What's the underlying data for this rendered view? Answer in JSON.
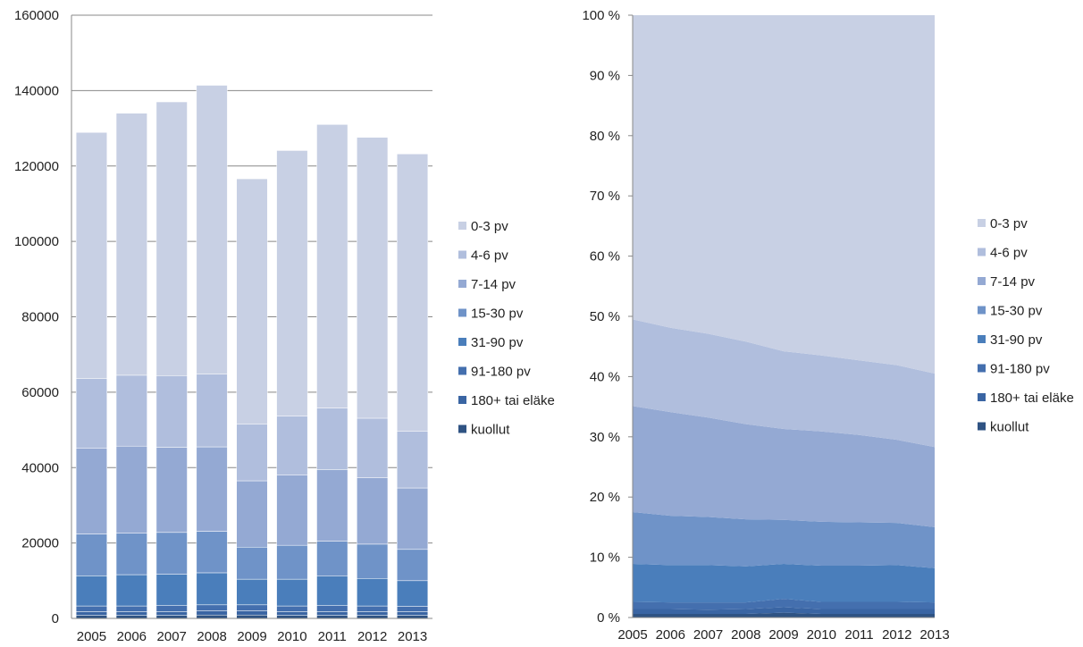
{
  "colors": {
    "kuollut": "#2f5383",
    "180+ tai eläke": "#3a65a3",
    "91-180 pv": "#446fae",
    "31-90 pv": "#4a7ebb",
    "15-30 pv": "#6f93c8",
    "7-14 pv": "#94a9d3",
    "4-6 pv": "#b0bedd",
    "0-3 pv": "#c8d0e4",
    "grid": "#888888",
    "axis": "#888888"
  },
  "chart_data": [
    {
      "type": "bar",
      "stacked": true,
      "categories": [
        "2005",
        "2006",
        "2007",
        "2008",
        "2009",
        "2010",
        "2011",
        "2012",
        "2013"
      ],
      "ylim": [
        0,
        160000
      ],
      "yticks": [
        0,
        20000,
        40000,
        60000,
        80000,
        100000,
        120000,
        140000,
        160000
      ],
      "ytick_labels": [
        "0",
        "20000",
        "40000",
        "60000",
        "80000",
        "100000",
        "120000",
        "140000",
        "160000"
      ],
      "grid": true,
      "legend_position": "right",
      "series": [
        {
          "name": "kuollut",
          "values": [
            800,
            800,
            800,
            900,
            900,
            800,
            800,
            800,
            800
          ]
        },
        {
          "name": "180+ tai eläke",
          "values": [
            1000,
            1000,
            1000,
            1100,
            1100,
            1000,
            1000,
            1000,
            1000
          ]
        },
        {
          "name": "91-180 pv",
          "values": [
            1500,
            1500,
            1600,
            1600,
            1600,
            1500,
            1600,
            1500,
            1400
          ]
        },
        {
          "name": "31-90 pv",
          "values": [
            8000,
            8300,
            8300,
            8500,
            6800,
            7100,
            7800,
            7300,
            6800
          ]
        },
        {
          "name": "15-30 pv",
          "values": [
            11100,
            11000,
            11100,
            11000,
            8500,
            9000,
            9300,
            9100,
            8300
          ]
        },
        {
          "name": "7-14 pv",
          "values": [
            22700,
            23100,
            22600,
            22400,
            17600,
            18600,
            19000,
            17600,
            16300
          ]
        },
        {
          "name": "4-6 pv",
          "values": [
            18500,
            18800,
            19000,
            19300,
            15000,
            15700,
            16300,
            15800,
            15000
          ]
        },
        {
          "name": "0-3 pv",
          "values": [
            65300,
            69500,
            72600,
            76600,
            65100,
            70400,
            75200,
            74500,
            73600
          ]
        }
      ]
    },
    {
      "type": "area",
      "stacked": true,
      "percent": true,
      "categories": [
        "2005",
        "2006",
        "2007",
        "2008",
        "2009",
        "2010",
        "2011",
        "2012",
        "2013"
      ],
      "ylim": [
        0,
        100
      ],
      "yticks": [
        0,
        10,
        20,
        30,
        40,
        50,
        60,
        70,
        80,
        90,
        100
      ],
      "ytick_labels": [
        "0 %",
        "10 %",
        "20 %",
        "30 %",
        "40 %",
        "50 %",
        "60 %",
        "70 %",
        "80 %",
        "90 %",
        "100 %"
      ],
      "grid": false,
      "legend_position": "right",
      "series": [
        {
          "name": "kuollut",
          "values": [
            0.6,
            0.6,
            0.6,
            0.6,
            0.8,
            0.6,
            0.6,
            0.6,
            0.6
          ]
        },
        {
          "name": "180+ tai eläke",
          "values": [
            0.8,
            0.8,
            0.7,
            0.8,
            0.9,
            0.8,
            0.8,
            0.8,
            0.8
          ]
        },
        {
          "name": "91-180 pv",
          "values": [
            1.2,
            1.1,
            1.2,
            1.1,
            1.4,
            1.2,
            1.2,
            1.2,
            1.1
          ]
        },
        {
          "name": "31-90 pv",
          "values": [
            6.3,
            6.2,
            6.2,
            6.0,
            5.8,
            6.0,
            6.0,
            6.1,
            5.7
          ]
        },
        {
          "name": "15-30 pv",
          "values": [
            8.6,
            8.2,
            8.0,
            7.8,
            7.3,
            7.3,
            7.2,
            7.0,
            6.8
          ]
        },
        {
          "name": "7-14 pv",
          "values": [
            17.6,
            17.2,
            16.5,
            15.8,
            15.1,
            15.0,
            14.5,
            13.8,
            13.3
          ]
        },
        {
          "name": "4-6 pv",
          "values": [
            14.4,
            14.0,
            13.9,
            13.7,
            12.9,
            12.6,
            12.4,
            12.4,
            12.2
          ]
        },
        {
          "name": "0-3 pv",
          "values": [
            50.5,
            51.9,
            52.9,
            54.2,
            55.8,
            56.5,
            57.3,
            58.1,
            59.5
          ]
        }
      ]
    }
  ]
}
